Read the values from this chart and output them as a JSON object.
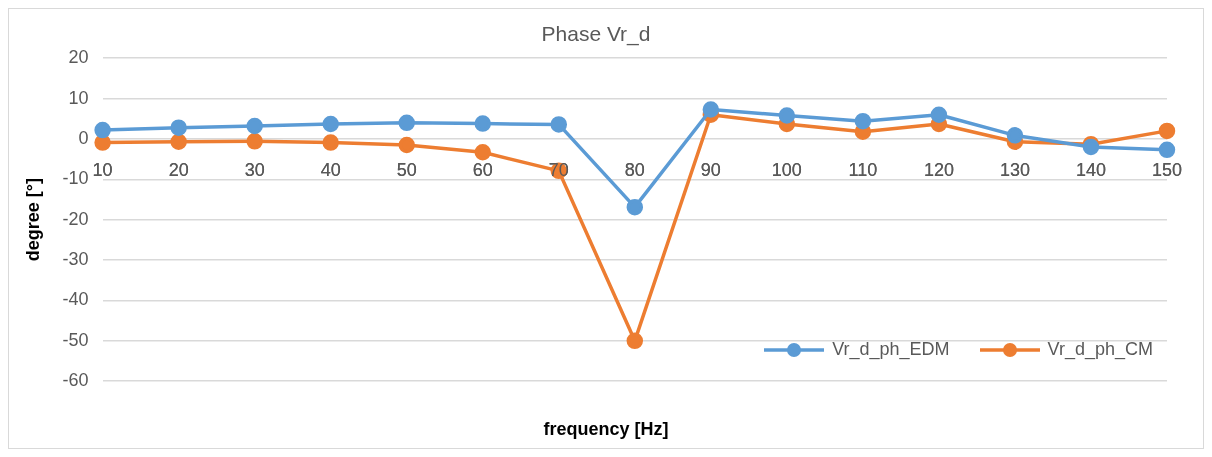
{
  "chart_data": {
    "type": "line",
    "title": "Phase Vr_d",
    "xlabel": "frequency [Hz]",
    "ylabel": "degree [°]",
    "categories": [
      "10",
      "20",
      "30",
      "40",
      "50",
      "60",
      "70",
      "80",
      "90",
      "100",
      "110",
      "120",
      "130",
      "140",
      "150"
    ],
    "series": [
      {
        "name": "Vr_d_ph_EDM",
        "color": "#5b9bd5",
        "values": [
          2.2,
          2.8,
          3.2,
          3.7,
          4.0,
          3.8,
          3.6,
          -16.9,
          7.3,
          5.8,
          4.4,
          6.0,
          0.9,
          -2.0,
          -2.7
        ]
      },
      {
        "name": "Vr_d_ph_CM",
        "color": "#ed7d31",
        "values": [
          -0.9,
          -0.7,
          -0.6,
          -0.9,
          -1.5,
          -3.3,
          -7.9,
          -50,
          6.0,
          3.7,
          1.8,
          3.7,
          -0.7,
          -1.3,
          2.0
        ]
      }
    ],
    "ylim": [
      -60,
      20
    ],
    "yticks": [
      -60,
      -50,
      -40,
      -30,
      -20,
      -10,
      0,
      10,
      20
    ],
    "grid": "y",
    "legend": "bottom right",
    "marker": "circle",
    "line_style": "solid"
  }
}
